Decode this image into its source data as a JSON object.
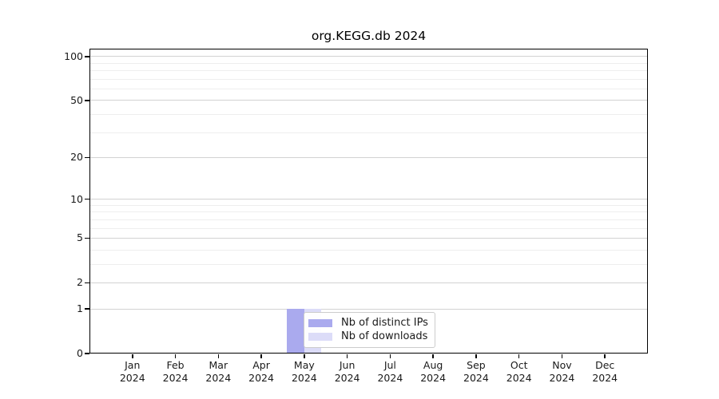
{
  "figure": {
    "title": "org.KEGG.db 2024"
  },
  "chart_data": {
    "type": "bar",
    "title": "org.KEGG.db 2024",
    "x_year": "2024",
    "categories": [
      "Jan",
      "Feb",
      "Mar",
      "Apr",
      "May",
      "Jun",
      "Jul",
      "Aug",
      "Sep",
      "Oct",
      "Nov",
      "Dec"
    ],
    "series": [
      {
        "name": "Nb of distinct IPs",
        "color": "#aaaaee",
        "values": [
          0,
          0,
          0,
          0,
          1,
          0,
          0,
          0,
          0,
          0,
          0,
          0
        ]
      },
      {
        "name": "Nb of downloads",
        "color": "#dcdcf8",
        "values": [
          0,
          0,
          0,
          0,
          1,
          0,
          0,
          0,
          0,
          0,
          0,
          0
        ]
      }
    ],
    "y_scale": "log1p",
    "ylim": [
      0,
      113
    ],
    "y_major_ticks": [
      0,
      1,
      2,
      5,
      10,
      20,
      50,
      100
    ],
    "y_minor_gridlines": [
      3,
      4,
      6,
      7,
      8,
      9,
      30,
      40,
      60,
      70,
      80,
      90
    ],
    "grid": "horizontal",
    "legend_position": "inside-bottom-center-left"
  },
  "colors": {
    "axis": "#000000",
    "grid_major": "#d2d2d2",
    "grid_minor": "#eeeeee",
    "background": "#ffffff",
    "legend_border": "#cccccc",
    "legend_background": "#ffffff",
    "text": "#1a1a1a"
  }
}
